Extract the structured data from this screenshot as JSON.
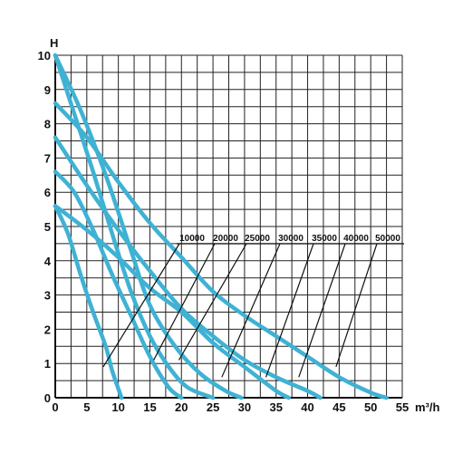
{
  "chart_data": {
    "type": "line",
    "ylabel": "H",
    "xlabel": "m³/h",
    "xlim": [
      0,
      55
    ],
    "ylim": [
      0,
      10
    ],
    "x_ticks": [
      0,
      5,
      10,
      15,
      20,
      25,
      30,
      35,
      40,
      45,
      50,
      55
    ],
    "y_ticks": [
      0,
      1,
      2,
      3,
      4,
      5,
      6,
      7,
      8,
      9,
      10
    ],
    "grid": true,
    "line_color": "#3fb2d4",
    "series": [
      {
        "name": "10000",
        "points": [
          [
            0,
            5.6
          ],
          [
            2,
            4.8
          ],
          [
            4,
            3.6
          ],
          [
            6,
            2.5
          ],
          [
            8,
            1.5
          ],
          [
            9,
            0.8
          ],
          [
            10.5,
            0
          ]
        ]
      },
      {
        "name": "20000",
        "points": [
          [
            0,
            6.6
          ],
          [
            3,
            6.0
          ],
          [
            6,
            4.9
          ],
          [
            9,
            3.6
          ],
          [
            12,
            2.4
          ],
          [
            15,
            1.2
          ],
          [
            18,
            0.3
          ],
          [
            20,
            0
          ]
        ]
      },
      {
        "name": "25000",
        "points": [
          [
            0,
            10.0
          ],
          [
            3,
            8.3
          ],
          [
            6,
            6.6
          ],
          [
            9,
            4.8
          ],
          [
            12,
            3.1
          ],
          [
            15,
            1.8
          ],
          [
            18,
            0.9
          ],
          [
            21,
            0.3
          ],
          [
            25,
            0
          ]
        ]
      },
      {
        "name": "30000",
        "points": [
          [
            0,
            10.0
          ],
          [
            4,
            8.4
          ],
          [
            8,
            6.5
          ],
          [
            12,
            4.3
          ],
          [
            15,
            2.7
          ],
          [
            19,
            1.5
          ],
          [
            23,
            0.7
          ],
          [
            27,
            0.2
          ],
          [
            29.5,
            0
          ]
        ]
      },
      {
        "name": "35000",
        "points": [
          [
            0,
            5.6
          ],
          [
            5,
            4.9
          ],
          [
            10,
            4.1
          ],
          [
            15,
            3.2
          ],
          [
            20,
            2.5
          ],
          [
            25,
            1.6
          ],
          [
            30,
            0.9
          ],
          [
            35,
            0.2
          ],
          [
            37,
            0
          ]
        ]
      },
      {
        "name": "40000",
        "points": [
          [
            0,
            7.6
          ],
          [
            5,
            6.2
          ],
          [
            10,
            4.9
          ],
          [
            15,
            3.7
          ],
          [
            20,
            2.6
          ],
          [
            25,
            1.8
          ],
          [
            30,
            1.1
          ],
          [
            35,
            0.6
          ],
          [
            40,
            0.2
          ],
          [
            42,
            0
          ]
        ]
      },
      {
        "name": "50000",
        "points": [
          [
            0,
            8.6
          ],
          [
            5,
            7.6
          ],
          [
            10,
            6.3
          ],
          [
            15,
            5.1
          ],
          [
            20,
            4.1
          ],
          [
            25,
            3.1
          ],
          [
            30,
            2.4
          ],
          [
            35,
            1.8
          ],
          [
            40,
            1.2
          ],
          [
            45,
            0.6
          ],
          [
            50,
            0.15
          ],
          [
            52.5,
            0
          ]
        ]
      }
    ],
    "model_labels": [
      {
        "text": "10000",
        "points_to": [
          7.6,
          0.9
        ]
      },
      {
        "text": "20000",
        "points_to": [
          15.6,
          1.1
        ]
      },
      {
        "text": "25000",
        "points_to": [
          19.6,
          1.1
        ]
      },
      {
        "text": "30000",
        "points_to": [
          26.4,
          0.6
        ]
      },
      {
        "text": "35000",
        "points_to": [
          33.4,
          0.6
        ]
      },
      {
        "text": "40000",
        "points_to": [
          38.6,
          0.6
        ]
      },
      {
        "text": "50000",
        "points_to": [
          44.5,
          0.9
        ]
      }
    ]
  }
}
